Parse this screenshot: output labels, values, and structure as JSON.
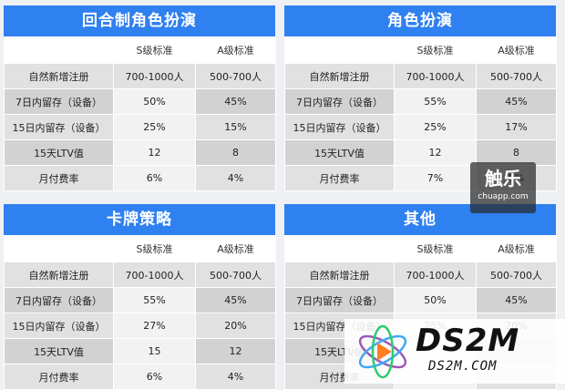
{
  "panels": [
    {
      "title": "回合制角色扮演",
      "headers": [
        "",
        "S级标准",
        "A级标准"
      ],
      "rows": [
        {
          "label": "自然新增注册",
          "s": "700-1000人",
          "a": "500-700人"
        },
        {
          "label": "7日内留存（设备）",
          "s": "50%",
          "a": "45%"
        },
        {
          "label": "15日内留存（设备）",
          "s": "25%",
          "a": "15%"
        },
        {
          "label": "15天LTV值",
          "s": "12",
          "a": "8"
        },
        {
          "label": "月付费率",
          "s": "6%",
          "a": "4%"
        }
      ]
    },
    {
      "title": "角色扮演",
      "headers": [
        "",
        "S级标准",
        "A级标准"
      ],
      "rows": [
        {
          "label": "自然新增注册",
          "s": "700-1000人",
          "a": "500-700人"
        },
        {
          "label": "7日内留存（设备）",
          "s": "55%",
          "a": "45%"
        },
        {
          "label": "15日内留存（设备）",
          "s": "25%",
          "a": "17%"
        },
        {
          "label": "15天LTV值",
          "s": "12",
          "a": "8"
        },
        {
          "label": "月付费率",
          "s": "7%",
          "a": "5%"
        }
      ]
    },
    {
      "title": "卡牌策略",
      "headers": [
        "",
        "S级标准",
        "A级标准"
      ],
      "rows": [
        {
          "label": "自然新增注册",
          "s": "700-1000人",
          "a": "500-700人"
        },
        {
          "label": "7日内留存（设备）",
          "s": "55%",
          "a": "45%"
        },
        {
          "label": "15日内留存（设备）",
          "s": "27%",
          "a": "20%"
        },
        {
          "label": "15天LTV值",
          "s": "15",
          "a": "12"
        },
        {
          "label": "月付费率",
          "s": "6%",
          "a": "4%"
        }
      ]
    },
    {
      "title": "其他",
      "headers": [
        "",
        "S级标准",
        "A级标准"
      ],
      "rows": [
        {
          "label": "自然新增注册",
          "s": "700-1000人",
          "a": "500-700人"
        },
        {
          "label": "7日内留存（设备）",
          "s": "50%",
          "a": "45%"
        },
        {
          "label": "15日内留存（设备）",
          "s": "25%",
          "a": "20%"
        },
        {
          "label": "15天LTV值",
          "s": "",
          "a": ""
        },
        {
          "label": "月付费率",
          "s": "",
          "a": ""
        }
      ]
    }
  ],
  "watermark_chuapp": {
    "name": "触乐",
    "url": "chuapp.com"
  },
  "watermark_ds2m": {
    "name": "DS2M",
    "url": "DS2M.COM"
  },
  "colors": {
    "title_bar": "#2f80f0",
    "row_odd": "#e1e1e1",
    "row_even": "#d2d2d2"
  }
}
